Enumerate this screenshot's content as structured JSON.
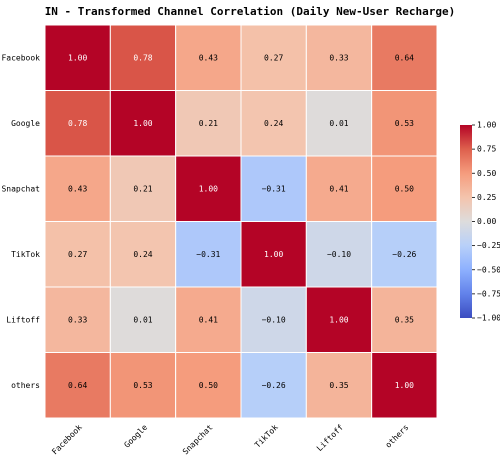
{
  "chart_data": {
    "type": "heatmap",
    "title": "IN - Transformed Channel Correlation (Daily New-User Recharge)",
    "categories": [
      "Facebook",
      "Google",
      "Snapchat",
      "TikTok",
      "Liftoff",
      "others"
    ],
    "values": [
      [
        1,
        0.78,
        0.43,
        0.27,
        0.33,
        0.64
      ],
      [
        0.78,
        1,
        0.21,
        0.24,
        0.01,
        0.53
      ],
      [
        0.43,
        0.21,
        1,
        -0.31,
        0.41,
        0.5
      ],
      [
        0.27,
        0.24,
        -0.31,
        1,
        -0.1,
        -0.26
      ],
      [
        0.33,
        0.01,
        0.41,
        -0.1,
        1,
        0.35
      ],
      [
        0.64,
        0.53,
        0.5,
        -0.26,
        0.35,
        1
      ]
    ],
    "value_labels": [
      [
        "1.00",
        "0.78",
        "0.43",
        "0.27",
        "0.33",
        "0.64"
      ],
      [
        "0.78",
        "1.00",
        "0.21",
        "0.24",
        "0.01",
        "0.53"
      ],
      [
        "0.43",
        "0.21",
        "1.00",
        "−0.31",
        "0.41",
        "0.50"
      ],
      [
        "0.27",
        "0.24",
        "−0.31",
        "1.00",
        "−0.10",
        "−0.26"
      ],
      [
        "0.33",
        "0.01",
        "0.41",
        "−0.10",
        "1.00",
        "0.35"
      ],
      [
        "0.64",
        "0.53",
        "0.50",
        "−0.26",
        "0.35",
        "1.00"
      ]
    ],
    "colormap": "coolwarm",
    "clim": [
      -1,
      1
    ],
    "cticks": [
      {
        "value": -1,
        "label": "−1.00"
      },
      {
        "value": -0.75,
        "label": "−0.75"
      },
      {
        "value": -0.5,
        "label": "−0.50"
      },
      {
        "value": -0.25,
        "label": "−0.25"
      },
      {
        "value": 0,
        "label": "0.00"
      },
      {
        "value": 0.25,
        "label": "0.25"
      },
      {
        "value": 0.5,
        "label": "0.50"
      },
      {
        "value": 0.75,
        "label": "0.75"
      },
      {
        "value": 1,
        "label": "1.00"
      }
    ]
  }
}
